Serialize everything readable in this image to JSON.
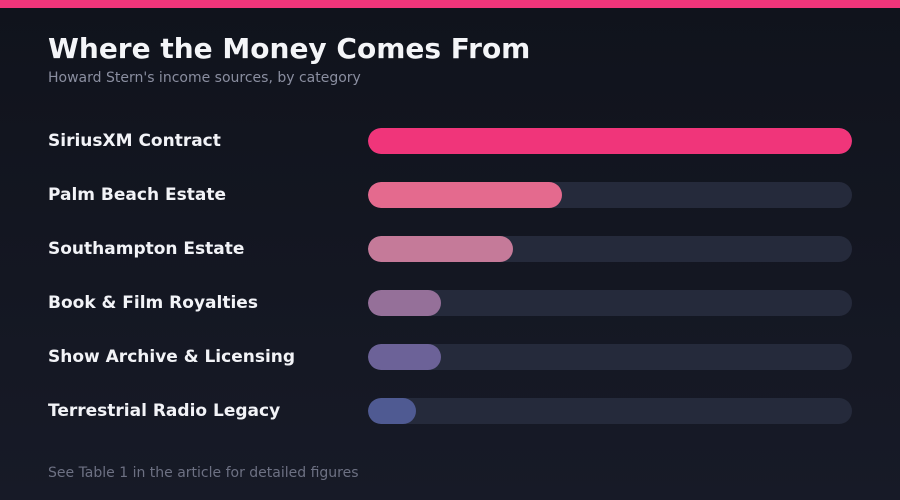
{
  "header": {
    "title": "Where the Money Comes From",
    "subtitle": "Howard Stern's income sources, by category"
  },
  "footer": {
    "note": "See Table 1 in the article for detailed figures"
  },
  "colors": {
    "accent": "#f0357a",
    "track": "#252a3b"
  },
  "chart_data": {
    "type": "bar",
    "orientation": "horizontal",
    "title": "Where the Money Comes From",
    "subtitle": "Howard Stern's income sources, by category",
    "categories": [
      "SiriusXM Contract",
      "Palm Beach Estate",
      "Southampton Estate",
      "Book & Film Royalties",
      "Show Archive & Licensing",
      "Terrestrial Radio Legacy"
    ],
    "values": [
      100,
      40,
      30,
      15,
      15,
      10
    ],
    "value_unit": "relative share of largest source (%)",
    "xlim": [
      0,
      100
    ],
    "grid": false,
    "legend": "none",
    "bar_colors": [
      "#f0357a",
      "#e46a8e",
      "#c57a99",
      "#957099",
      "#6c6298",
      "#4f5a92"
    ]
  }
}
